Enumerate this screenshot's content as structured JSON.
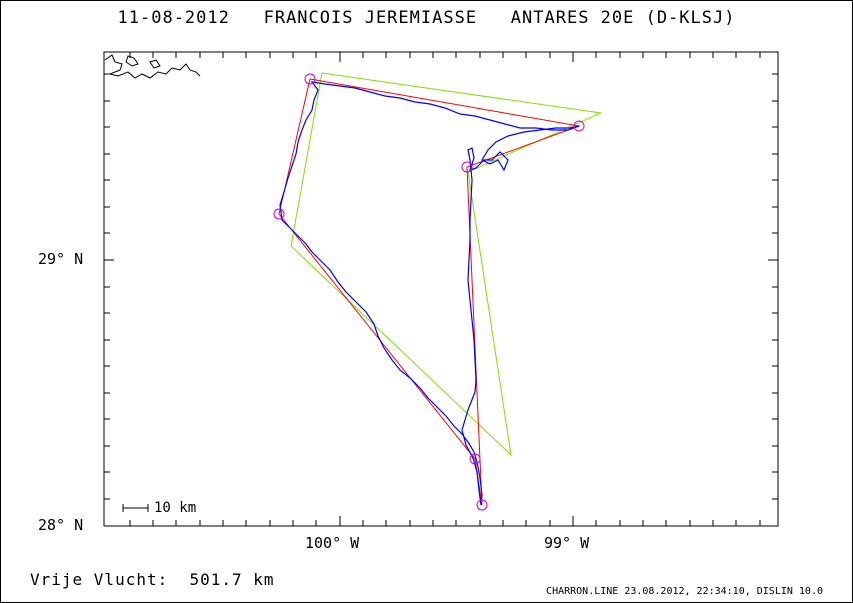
{
  "title": {
    "date": "11-08-2012",
    "pilot": "FRANCOIS JEREMIASSE",
    "glider": "ANTARES 20E (D-KLSJ)"
  },
  "map": {
    "y_tick_labels": [
      "29° N",
      "28° N"
    ],
    "x_tick_labels": [
      "100° W",
      "99° W"
    ],
    "scale_bar": "10 km",
    "colors": {
      "flight_track": "#0000ff",
      "task_route": "#ff0000",
      "declared_route": "#80e000",
      "turnpoints": "#d000d0",
      "coastline": "#000000"
    }
  },
  "footer": {
    "distance_label": "Vrije Vlucht:",
    "distance_value": "501.7 km",
    "software": "CHARRON.LINE 23.08.2012, 22:34:10, DISLIN 10.0"
  }
}
